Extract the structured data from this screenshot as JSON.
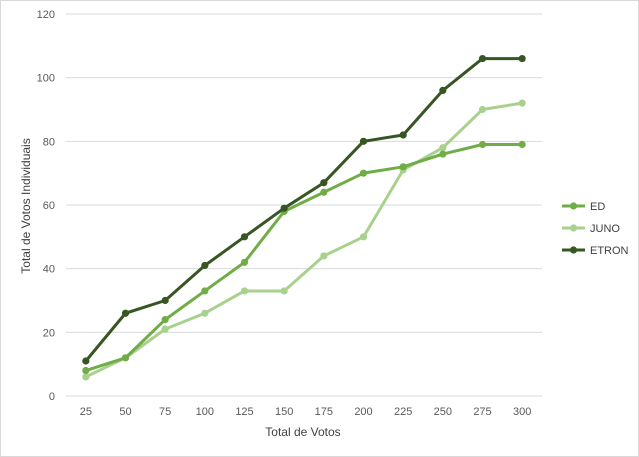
{
  "chart_data": {
    "type": "line",
    "xlabel": "Total de Votos",
    "ylabel": "Total de Votos Individuais",
    "ylim": [
      0,
      120
    ],
    "yticks": [
      0,
      20,
      40,
      60,
      80,
      100,
      120
    ],
    "categories": [
      "25",
      "50",
      "75",
      "100",
      "125",
      "150",
      "175",
      "200",
      "225",
      "250",
      "275",
      "300"
    ],
    "grid": "horizontal",
    "legend_position": "right",
    "series": [
      {
        "name": "ED",
        "color": "#70ad47",
        "values": [
          8,
          12,
          24,
          33,
          42,
          58,
          64,
          70,
          72,
          76,
          79,
          79
        ]
      },
      {
        "name": "JUNO",
        "color": "#a9d18e",
        "values": [
          6,
          12,
          21,
          26,
          33,
          33,
          44,
          50,
          71,
          78,
          90,
          92
        ]
      },
      {
        "name": "ETRON",
        "color": "#375623",
        "values": [
          11,
          26,
          30,
          41,
          50,
          59,
          67,
          80,
          82,
          96,
          106,
          106
        ]
      }
    ]
  }
}
